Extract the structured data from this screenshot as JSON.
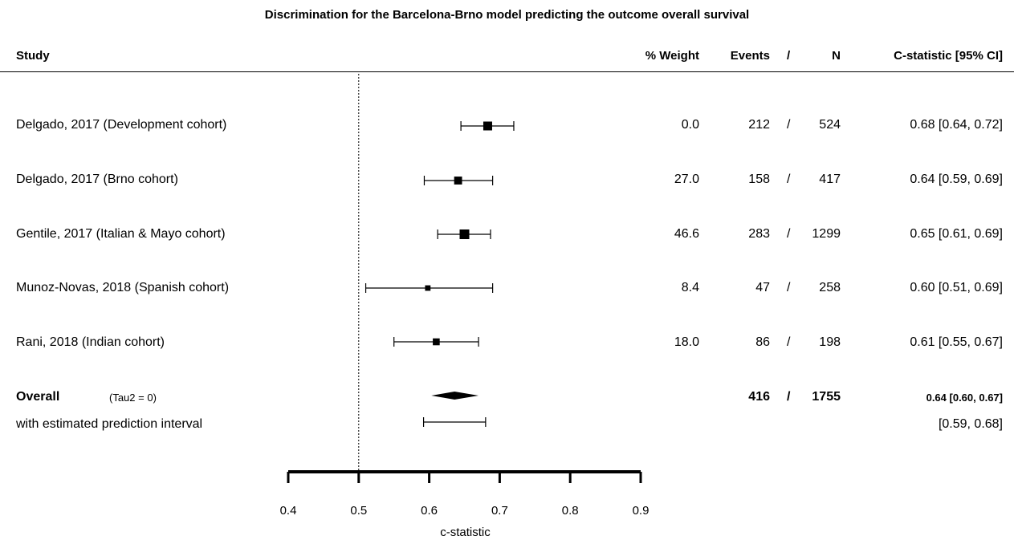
{
  "title": "Discrimination for the Barcelona-Brno model predicting the outcome overall survival",
  "headers": {
    "study": "Study",
    "weight": "% Weight",
    "events": "Events",
    "slash": "/",
    "n": "N",
    "cstat": "C-statistic [95% CI]"
  },
  "rows": [
    {
      "study": "Delgado, 2017 (Development cohort)",
      "weight": "0.0",
      "events": "212",
      "slash": "/",
      "n": "524",
      "cstat": "0.68 [0.64, 0.72]"
    },
    {
      "study": "Delgado, 2017 (Brno cohort)",
      "weight": "27.0",
      "events": "158",
      "slash": "/",
      "n": "417",
      "cstat": "0.64 [0.59, 0.69]"
    },
    {
      "study": "Gentile, 2017 (Italian & Mayo cohort)",
      "weight": "46.6",
      "events": "283",
      "slash": "/",
      "n": "1299",
      "cstat": "0.65 [0.61, 0.69]"
    },
    {
      "study": "Munoz-Novas, 2018 (Spanish cohort)",
      "weight": "8.4",
      "events": "47",
      "slash": "/",
      "n": "258",
      "cstat": "0.60 [0.51, 0.69]"
    },
    {
      "study": "Rani, 2018 (Indian cohort)",
      "weight": "18.0",
      "events": "86",
      "slash": "/",
      "n": "198",
      "cstat": "0.61 [0.55, 0.67]"
    }
  ],
  "overall": {
    "label": "Overall",
    "tau": "(Tau2 = 0)",
    "events": "416",
    "slash": "/",
    "n": "1755",
    "cstat": "0.64 [0.60, 0.67]",
    "pi_label": "with estimated prediction interval",
    "pi": "[0.59, 0.68]"
  },
  "chart_data": {
    "type": "forest",
    "xlabel": "c-statistic",
    "xlim": [
      0.4,
      0.9
    ],
    "xticks": [
      0.4,
      0.5,
      0.6,
      0.7,
      0.8,
      0.9
    ],
    "xtick_labels": [
      "0.4",
      "0.5",
      "0.6",
      "0.7",
      "0.8",
      "0.9"
    ],
    "reference_line": 0.5,
    "studies": [
      {
        "name": "Delgado, 2017 (Development cohort)",
        "estimate": 0.683,
        "lower": 0.645,
        "upper": 0.72,
        "weight": 0.0
      },
      {
        "name": "Delgado, 2017 (Brno cohort)",
        "estimate": 0.641,
        "lower": 0.593,
        "upper": 0.69,
        "weight": 27.0
      },
      {
        "name": "Gentile, 2017 (Italian & Mayo cohort)",
        "estimate": 0.65,
        "lower": 0.612,
        "upper": 0.687,
        "weight": 46.6
      },
      {
        "name": "Munoz-Novas, 2018 (Spanish cohort)",
        "estimate": 0.598,
        "lower": 0.51,
        "upper": 0.69,
        "weight": 8.4
      },
      {
        "name": "Rani, 2018 (Indian cohort)",
        "estimate": 0.61,
        "lower": 0.55,
        "upper": 0.67,
        "weight": 18.0
      }
    ],
    "overall": {
      "estimate": 0.636,
      "lower": 0.603,
      "upper": 0.67,
      "pi_lower": 0.592,
      "pi_upper": 0.68
    }
  }
}
